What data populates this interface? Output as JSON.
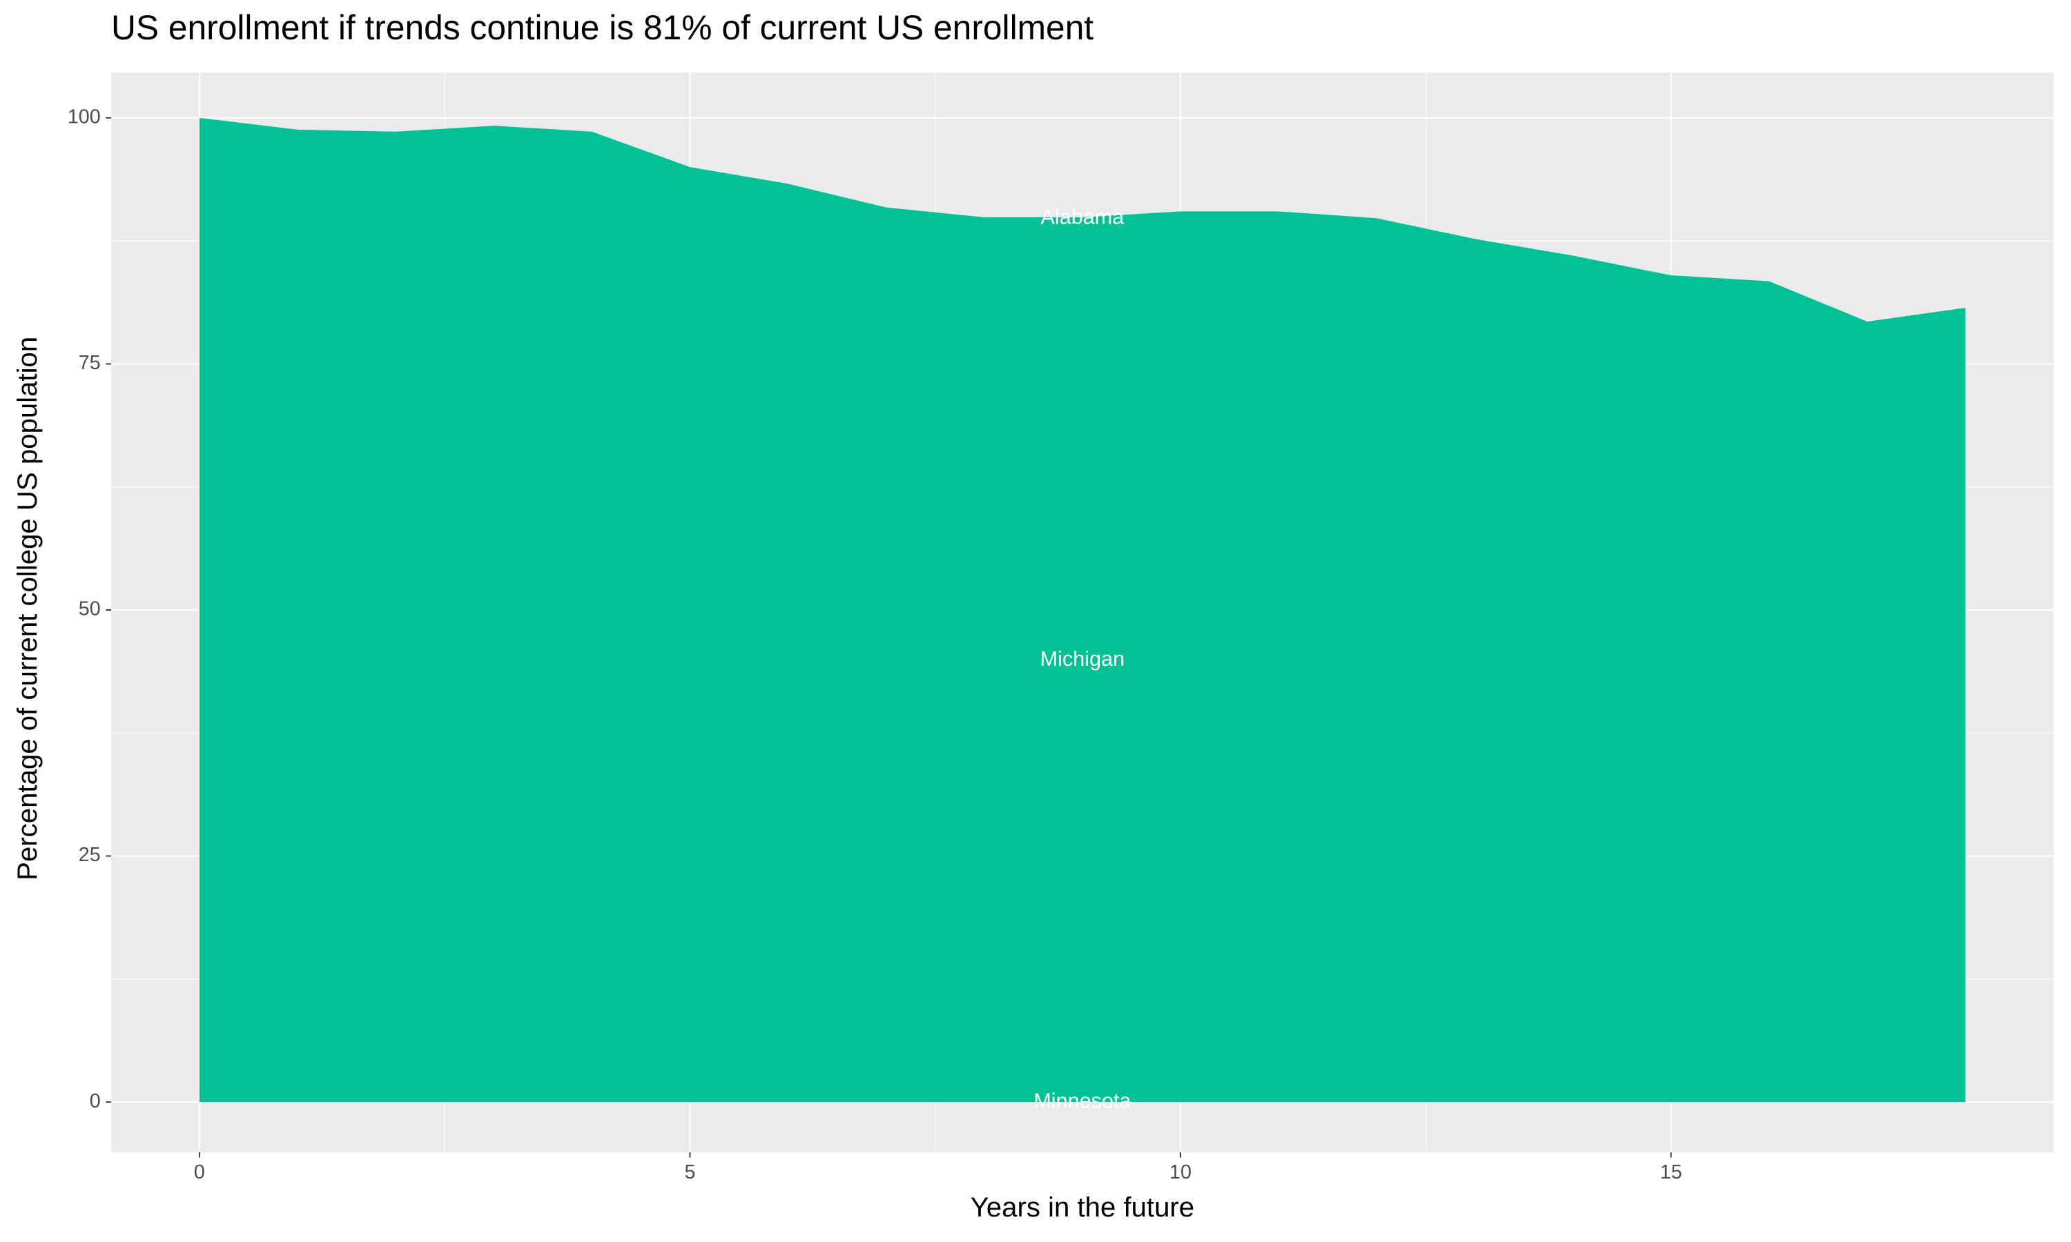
{
  "chart_data": {
    "type": "area",
    "title": "US enrollment if trends continue is 81% of current US enrollment",
    "x_label": "Years in the future",
    "y_label": "Percentage of current college US population",
    "x": [
      0,
      1,
      2,
      3,
      4,
      5,
      6,
      7,
      8,
      9,
      10,
      11,
      12,
      13,
      14,
      15,
      16,
      17,
      18
    ],
    "values": [
      100,
      98.8,
      98.6,
      99.2,
      98.6,
      95.0,
      93.3,
      90.9,
      89.9,
      89.9,
      90.5,
      90.5,
      89.8,
      87.7,
      86.0,
      84.0,
      83.4,
      79.3,
      80.7
    ],
    "color": "#00c196",
    "annotations": [
      {
        "text": "Alabama",
        "x": 9,
        "y": 89.8
      },
      {
        "text": "Michigan",
        "x": 9,
        "y": 44.9
      },
      {
        "text": "Minnesota",
        "x": 9,
        "y": 0
      }
    ],
    "xlim": [
      -0.9,
      18.9
    ],
    "ylim": [
      -5.1,
      104.6
    ],
    "xticks": [
      0,
      5,
      10,
      15
    ],
    "yticks": [
      0,
      25,
      50,
      75,
      100
    ],
    "grid": true
  }
}
